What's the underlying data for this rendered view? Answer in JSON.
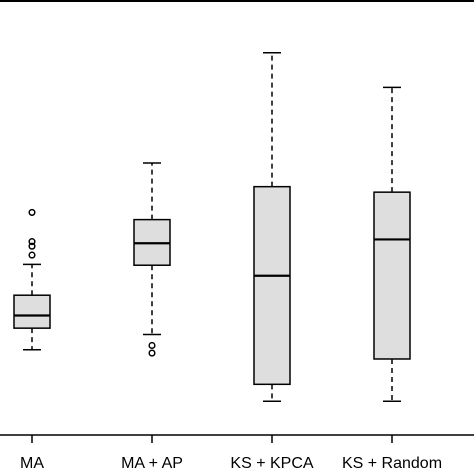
{
  "chart_data": {
    "type": "boxplot",
    "categories": [
      "MA",
      "MA + AP",
      "KS + KPCA",
      "KS + Random"
    ],
    "boxes": [
      {
        "name": "MA",
        "whisker_low": 62,
        "q1": 113,
        "median": 143,
        "q3": 191,
        "whisker_high": 264,
        "outliers": [
          286,
          307,
          318,
          387
        ]
      },
      {
        "name": "MA + AP",
        "whisker_low": 98,
        "q1": 262,
        "median": 314,
        "q3": 370,
        "whisker_high": 504,
        "outliers": [
          54,
          72
        ]
      },
      {
        "name": "KS + KPCA",
        "whisker_low": -60,
        "q1": -20,
        "median": 237,
        "q3": 448,
        "whisker_high": 765,
        "outliers": []
      },
      {
        "name": "KS + Random",
        "whisker_low": -60,
        "q1": 40,
        "median": 323,
        "q3": 435,
        "whisker_high": 683,
        "outliers": []
      }
    ],
    "ylim": [
      -140,
      890
    ],
    "grid": false,
    "box_fill": "#dedede",
    "stroke": "#000000"
  }
}
